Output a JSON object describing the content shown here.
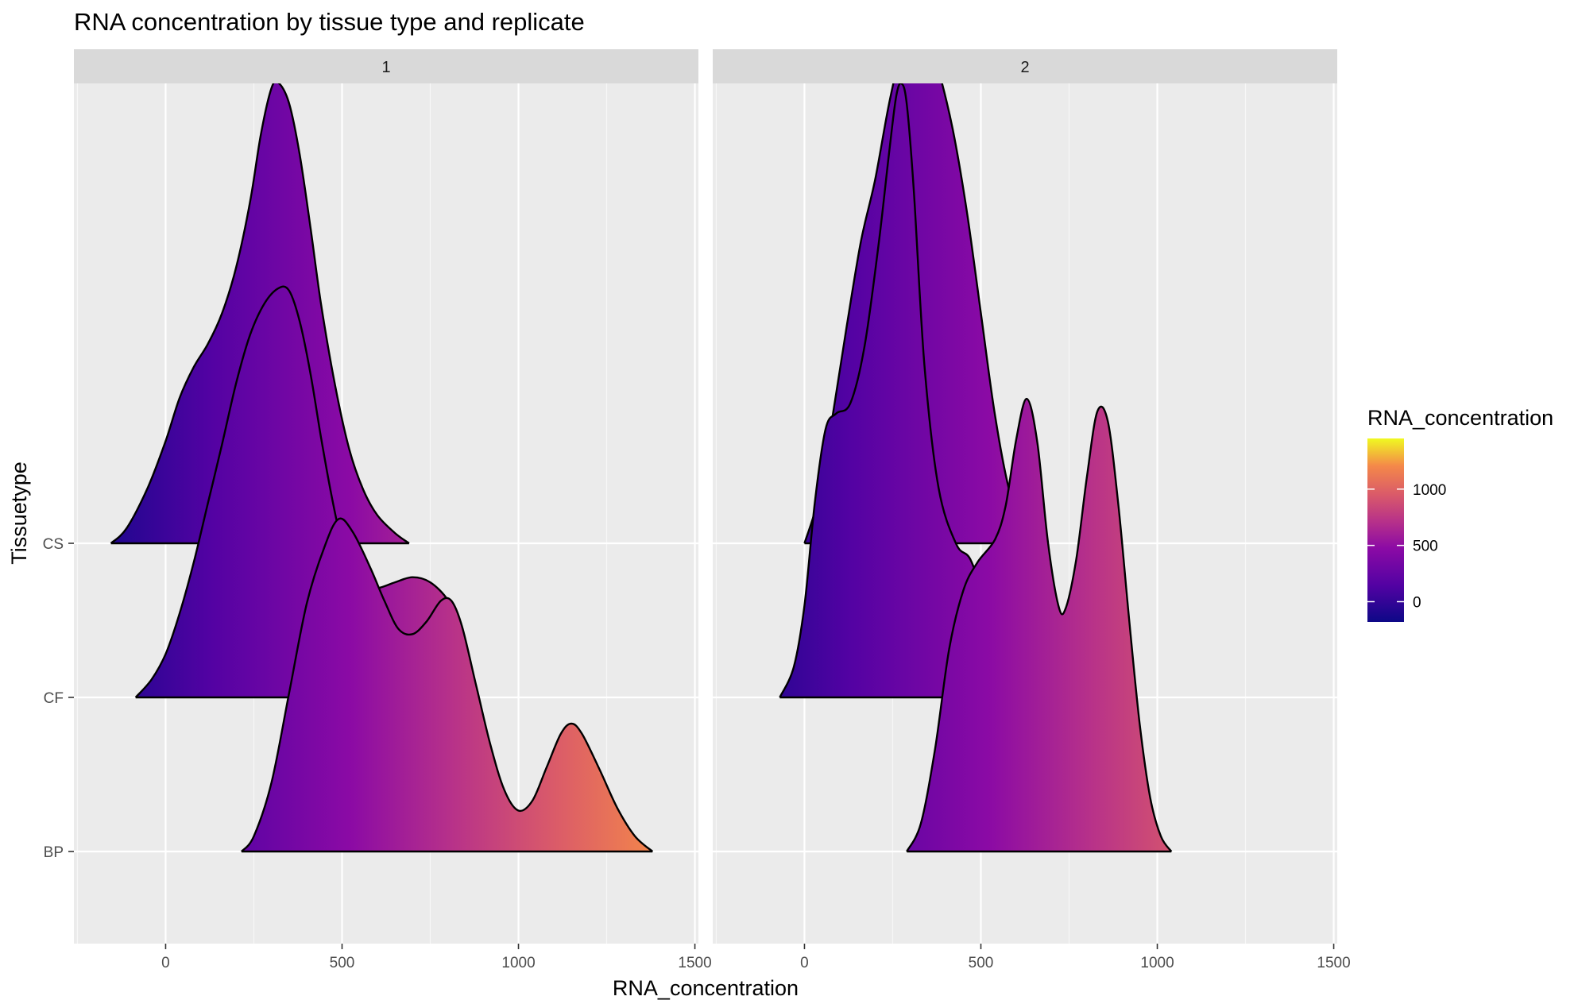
{
  "chart_data": {
    "type": "area",
    "title": "RNA concentration by tissue type and replicate",
    "xlabel": "RNA_concentration",
    "ylabel": "Tissuetype",
    "xlim": [
      -260,
      1510
    ],
    "x_ticks": [
      0,
      500,
      1000,
      1500
    ],
    "categories": [
      "BP",
      "CF",
      "CS"
    ],
    "grid": true,
    "legend": {
      "title": "RNA_concentration",
      "placement": "right",
      "ticks": [
        0,
        500,
        1000
      ],
      "range": [
        -180,
        1450
      ],
      "colors": [
        "#0d0887",
        "#6a00a8",
        "#b12a90",
        "#e16462",
        "#fca636",
        "#f0f921"
      ]
    },
    "facets": [
      {
        "label": "1",
        "ridges": [
          {
            "category": "CS",
            "points": [
              [
                -155,
                0
              ],
              [
                -110,
                0.06
              ],
              [
                -50,
                0.22
              ],
              [
                0,
                0.4
              ],
              [
                40,
                0.57
              ],
              [
                80,
                0.69
              ],
              [
                120,
                0.78
              ],
              [
                160,
                0.9
              ],
              [
                200,
                1.08
              ],
              [
                240,
                1.34
              ],
              [
                270,
                1.6
              ],
              [
                300,
                1.78
              ],
              [
                320,
                1.8
              ],
              [
                350,
                1.72
              ],
              [
                380,
                1.52
              ],
              [
                410,
                1.24
              ],
              [
                440,
                0.94
              ],
              [
                480,
                0.62
              ],
              [
                520,
                0.37
              ],
              [
                560,
                0.21
              ],
              [
                600,
                0.11
              ],
              [
                650,
                0.04
              ],
              [
                690,
                0
              ]
            ]
          },
          {
            "category": "CF",
            "points": [
              [
                -85,
                0
              ],
              [
                -40,
                0.07
              ],
              [
                0,
                0.17
              ],
              [
                40,
                0.33
              ],
              [
                80,
                0.53
              ],
              [
                120,
                0.76
              ],
              [
                160,
                0.99
              ],
              [
                200,
                1.23
              ],
              [
                240,
                1.42
              ],
              [
                280,
                1.54
              ],
              [
                320,
                1.6
              ],
              [
                350,
                1.59
              ],
              [
                380,
                1.47
              ],
              [
                410,
                1.27
              ],
              [
                440,
                1.02
              ],
              [
                470,
                0.79
              ],
              [
                500,
                0.6
              ],
              [
                530,
                0.48
              ],
              [
                570,
                0.42
              ],
              [
                610,
                0.43
              ],
              [
                650,
                0.45
              ],
              [
                700,
                0.47
              ],
              [
                750,
                0.45
              ],
              [
                800,
                0.38
              ],
              [
                830,
                0.28
              ],
              [
                860,
                0.15
              ],
              [
                880,
                0
              ]
            ]
          },
          {
            "category": "BP",
            "points": [
              [
                215,
                0
              ],
              [
                250,
                0.06
              ],
              [
                300,
                0.27
              ],
              [
                350,
                0.62
              ],
              [
                400,
                0.97
              ],
              [
                450,
                1.19
              ],
              [
                490,
                1.3
              ],
              [
                530,
                1.25
              ],
              [
                580,
                1.11
              ],
              [
                620,
                0.98
              ],
              [
                660,
                0.87
              ],
              [
                700,
                0.85
              ],
              [
                740,
                0.9
              ],
              [
                780,
                0.98
              ],
              [
                810,
                0.98
              ],
              [
                840,
                0.88
              ],
              [
                880,
                0.65
              ],
              [
                920,
                0.42
              ],
              [
                960,
                0.24
              ],
              [
                1000,
                0.16
              ],
              [
                1040,
                0.2
              ],
              [
                1080,
                0.33
              ],
              [
                1120,
                0.46
              ],
              [
                1150,
                0.5
              ],
              [
                1180,
                0.46
              ],
              [
                1230,
                0.32
              ],
              [
                1280,
                0.17
              ],
              [
                1330,
                0.06
              ],
              [
                1380,
                0
              ]
            ]
          }
        ]
      },
      {
        "label": "2",
        "ridges": [
          {
            "category": "CS",
            "points": [
              [
                0,
                0
              ],
              [
                40,
                0.18
              ],
              [
                80,
                0.5
              ],
              [
                120,
                0.85
              ],
              [
                160,
                1.18
              ],
              [
                200,
                1.42
              ],
              [
                240,
                1.72
              ],
              [
                280,
                1.96
              ],
              [
                310,
                2.05
              ],
              [
                340,
                2.02
              ],
              [
                380,
                1.85
              ],
              [
                420,
                1.62
              ],
              [
                460,
                1.3
              ],
              [
                500,
                0.9
              ],
              [
                540,
                0.5
              ],
              [
                580,
                0.21
              ],
              [
                620,
                0.06
              ],
              [
                650,
                0
              ]
            ]
          },
          {
            "category": "CF",
            "points": [
              [
                -70,
                0
              ],
              [
                -30,
                0.12
              ],
              [
                0,
                0.36
              ],
              [
                30,
                0.77
              ],
              [
                60,
                1.05
              ],
              [
                90,
                1.11
              ],
              [
                130,
                1.15
              ],
              [
                170,
                1.37
              ],
              [
                210,
                1.77
              ],
              [
                240,
                2.13
              ],
              [
                260,
                2.35
              ],
              [
                275,
                2.4
              ],
              [
                290,
                2.32
              ],
              [
                310,
                1.98
              ],
              [
                340,
                1.3
              ],
              [
                380,
                0.82
              ],
              [
                430,
                0.6
              ],
              [
                470,
                0.54
              ],
              [
                510,
                0.38
              ],
              [
                550,
                0.18
              ],
              [
                590,
                0.05
              ],
              [
                610,
                0
              ]
            ]
          },
          {
            "category": "BP",
            "points": [
              [
                290,
                0
              ],
              [
                330,
                0.11
              ],
              [
                370,
                0.4
              ],
              [
                410,
                0.79
              ],
              [
                450,
                1.02
              ],
              [
                490,
                1.13
              ],
              [
                540,
                1.22
              ],
              [
                570,
                1.35
              ],
              [
                600,
                1.61
              ],
              [
                630,
                1.77
              ],
              [
                660,
                1.6
              ],
              [
                690,
                1.21
              ],
              [
                720,
                0.96
              ],
              [
                740,
                0.95
              ],
              [
                770,
                1.14
              ],
              [
                800,
                1.46
              ],
              [
                830,
                1.72
              ],
              [
                860,
                1.68
              ],
              [
                890,
                1.35
              ],
              [
                920,
                0.91
              ],
              [
                950,
                0.5
              ],
              [
                980,
                0.21
              ],
              [
                1010,
                0.06
              ],
              [
                1040,
                0
              ]
            ]
          }
        ]
      }
    ]
  }
}
